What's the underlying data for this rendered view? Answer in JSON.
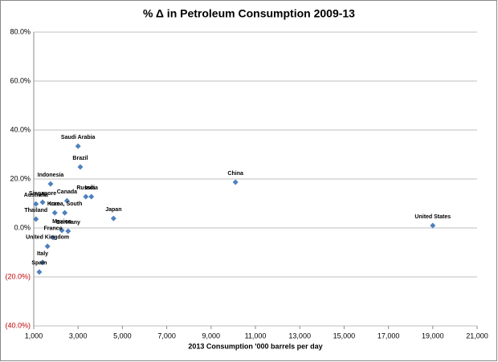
{
  "chart_data": {
    "type": "scatter",
    "title": "% Δ in Petroleum Consumption 2009-13",
    "x_label": "2013 Consumption '000 barrels per day",
    "labels": [
      "Saudi Arabia",
      "Brazil",
      "Indonesia",
      "China",
      "Singapore",
      "Australia",
      "Canada",
      "Russia",
      "India",
      "Iran",
      "Korea, South",
      "Thailand",
      "Japan",
      "Mexico",
      "Germany",
      "France",
      "United Kingdom",
      "Italy",
      "Spain",
      "United States"
    ],
    "x": [
      3000,
      3100,
      1760,
      10100,
      1400,
      1100,
      2500,
      3350,
      3600,
      1950,
      2400,
      1100,
      4600,
      2270,
      2550,
      1870,
      1620,
      1400,
      1250,
      19000
    ],
    "values": [
      33.4,
      24.9,
      18.0,
      18.7,
      10.5,
      9.8,
      11.1,
      12.8,
      12.8,
      6.2,
      6.2,
      3.6,
      3.9,
      -1.0,
      -1.3,
      -3.9,
      -7.5,
      -14.1,
      -18.0,
      1.0
    ],
    "color": "#4f81bd",
    "xlim": [
      1000,
      21000
    ],
    "xticks": [
      {
        "value": 1000,
        "label": "1,000"
      },
      {
        "value": 3000,
        "label": "3,000"
      },
      {
        "value": 5000,
        "label": "5,000"
      },
      {
        "value": 7000,
        "label": "7,000"
      },
      {
        "value": 9000,
        "label": "9,000"
      },
      {
        "value": 11000,
        "label": "11,000"
      },
      {
        "value": 13000,
        "label": "13,000"
      },
      {
        "value": 15000,
        "label": "15,000"
      },
      {
        "value": 17000,
        "label": "17,000"
      },
      {
        "value": 19000,
        "label": "19,000"
      },
      {
        "value": 21000,
        "label": "21,000"
      }
    ],
    "ylim": [
      -40,
      80
    ],
    "yticks": [
      {
        "value": 80,
        "label": "80.0%"
      },
      {
        "value": 60,
        "label": "60.0%"
      },
      {
        "value": 40,
        "label": "40.0%"
      },
      {
        "value": 20,
        "label": "20.0%"
      },
      {
        "value": 0,
        "label": "0.0%"
      },
      {
        "value": -20,
        "label": "(20.0%)"
      },
      {
        "value": -40,
        "label": "(40.0%)"
      }
    ],
    "negative_tick_color": "#c00000",
    "grid": true
  }
}
